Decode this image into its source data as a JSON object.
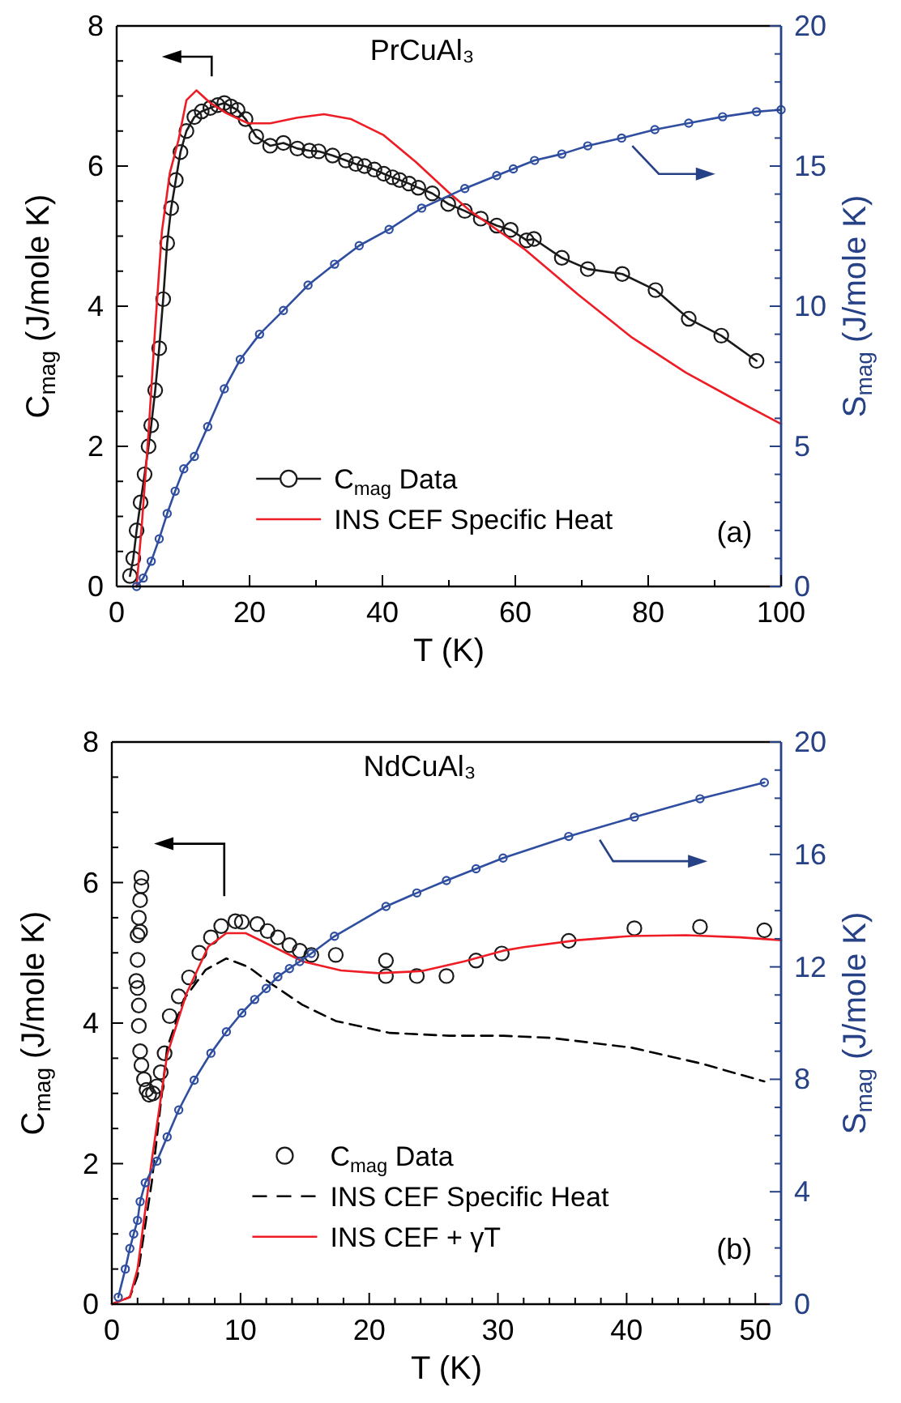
{
  "chart_data": [
    {
      "type": "line",
      "xlabel": "T (K)",
      "ylabel": "C$_{mag}$ (J/mole K)",
      "y2label": "S$_{mag}$ (J/mole K)",
      "annotations": [
        "PrCuAl₃",
        "(a)"
      ],
      "xlim": [
        0,
        100
      ],
      "xticks": [
        0,
        {
          "value": 10,
          "label": null
        },
        20,
        {
          "value": 30,
          "label": null
        },
        40,
        {
          "value": 50,
          "label": null
        },
        60,
        {
          "value": 70,
          "label": null
        },
        80,
        {
          "value": 90,
          "label": null
        },
        100
      ],
      "ylim": [
        0,
        8
      ],
      "yticks": [
        0,
        {
          "value": 0.5,
          "label": null
        },
        {
          "value": 1,
          "label": null
        },
        {
          "value": 1.5,
          "label": null
        },
        2,
        {
          "value": 2.5,
          "label": null
        },
        {
          "value": 3,
          "label": null
        },
        {
          "value": 3.5,
          "label": null
        },
        4,
        {
          "value": 4.5,
          "label": null
        },
        {
          "value": 5,
          "label": null
        },
        {
          "value": 5.5,
          "label": null
        },
        6,
        {
          "value": 6.5,
          "label": null
        },
        {
          "value": 7,
          "label": null
        },
        {
          "value": 7.5,
          "label": null
        },
        8
      ],
      "y2lim": [
        0,
        20
      ],
      "y2ticks": [
        0,
        {
          "value": 1,
          "label": null
        },
        {
          "value": 2,
          "label": null
        },
        {
          "value": 3,
          "label": null
        },
        {
          "value": 4,
          "label": null
        },
        5,
        {
          "value": 6,
          "label": null
        },
        {
          "value": 7,
          "label": null
        },
        {
          "value": 8,
          "label": null
        },
        {
          "value": 9,
          "label": null
        },
        10,
        {
          "value": 11,
          "label": null
        },
        {
          "value": 12,
          "label": null
        },
        {
          "value": 13,
          "label": null
        },
        {
          "value": 14,
          "label": null
        },
        15,
        {
          "value": 16,
          "label": null
        },
        {
          "value": 17,
          "label": null
        },
        {
          "value": 18,
          "label": null
        },
        {
          "value": 19,
          "label": null
        },
        20
      ],
      "legend": "bottom",
      "series": [
        {
          "name": "C$_{mag}$ Data",
          "type": "line",
          "marker": "circle",
          "line_style": "solid",
          "color": "#1a1a1a",
          "x": [
            2,
            2.5,
            3,
            3.6,
            4.2,
            4.8,
            5.2,
            5.8,
            6.4,
            7,
            7.6,
            8.2,
            8.9,
            9.6,
            10.5,
            11.7,
            12.8,
            14.1,
            15.2,
            16.2,
            17.2,
            18.2,
            19.4,
            21,
            23.1,
            25.1,
            27.2,
            29,
            30.4,
            32.5,
            34.5,
            36,
            37.3,
            38.8,
            40.2,
            41.5,
            42.6,
            44,
            45.4,
            47.5,
            49.9,
            52.4,
            54.8,
            57.2,
            59.3,
            61.7,
            62.8,
            67,
            70.9,
            76.1,
            81.1,
            86.1,
            91,
            96.3
          ],
          "values": [
            0.15,
            0.4,
            0.8,
            1.2,
            1.6,
            2.0,
            2.3,
            2.8,
            3.4,
            4.1,
            4.9,
            5.4,
            5.8,
            6.2,
            6.5,
            6.7,
            6.78,
            6.83,
            6.87,
            6.9,
            6.85,
            6.8,
            6.67,
            6.42,
            6.29,
            6.33,
            6.25,
            6.22,
            6.21,
            6.15,
            6.08,
            6.03,
            6.0,
            5.95,
            5.89,
            5.84,
            5.8,
            5.75,
            5.69,
            5.61,
            5.46,
            5.36,
            5.25,
            5.15,
            5.09,
            4.94,
            4.96,
            4.69,
            4.53,
            4.46,
            4.23,
            3.82,
            3.58,
            3.22
          ]
        },
        {
          "name": "INS CEF Specific Heat",
          "type": "line",
          "marker": "none",
          "line_style": "solid",
          "color": "#ee1c25",
          "x": [
            3,
            3.8,
            4.8,
            5.8,
            6.8,
            8,
            9.3,
            10.5,
            12,
            14.1,
            16.6,
            19.8,
            23.1,
            27.2,
            31.2,
            35.3,
            40.2,
            45,
            49.9,
            53.2,
            58,
            61.3,
            69.4,
            77.6,
            85.7,
            93.8,
            100
          ],
          "values": [
            0,
            0.9,
            2.2,
            3.7,
            5.06,
            5.9,
            6.37,
            6.94,
            7.08,
            6.9,
            6.75,
            6.61,
            6.61,
            6.69,
            6.74,
            6.67,
            6.44,
            6.06,
            5.63,
            5.36,
            5.04,
            4.82,
            4.17,
            3.55,
            3.05,
            2.63,
            2.32
          ]
        },
        {
          "type": "line",
          "axis": "y2",
          "marker": "circle",
          "line_style": "solid",
          "color": "#2f4ea0",
          "x": [
            3,
            4,
            5.2,
            6.4,
            7.6,
            8.8,
            10.1,
            11.7,
            13.7,
            16.2,
            18.6,
            21.5,
            25.1,
            28.8,
            32.8,
            36.5,
            41,
            45.9,
            52.4,
            57.2,
            59.7,
            62.9,
            67,
            70.9,
            76,
            81,
            86.1,
            91.2,
            96.3,
            100
          ],
          "values": [
            0,
            0.3,
            0.9,
            1.7,
            2.6,
            3.4,
            4.2,
            4.64,
            5.7,
            7.05,
            8.1,
            9.0,
            9.85,
            10.75,
            11.5,
            12.16,
            12.74,
            13.5,
            14.2,
            14.66,
            14.9,
            15.2,
            15.43,
            15.72,
            16,
            16.3,
            16.53,
            16.76,
            16.94,
            17.01
          ]
        }
      ]
    },
    {
      "type": "line",
      "xlabel": "T (K)",
      "ylabel": "C$_{mag}$ (J/mole K)",
      "y2label": "S$_{mag}$ (J/mole K)",
      "annotations": [
        "NdCuAl₃",
        "(b)"
      ],
      "xlim": [
        0,
        52
      ],
      "xticks": [
        0,
        {
          "value": 2,
          "label": null
        },
        {
          "value": 4,
          "label": null
        },
        {
          "value": 6,
          "label": null
        },
        {
          "value": 8,
          "label": null
        },
        10,
        {
          "value": 12,
          "label": null
        },
        {
          "value": 14,
          "label": null
        },
        {
          "value": 16,
          "label": null
        },
        {
          "value": 18,
          "label": null
        },
        20,
        {
          "value": 22,
          "label": null
        },
        {
          "value": 24,
          "label": null
        },
        {
          "value": 26,
          "label": null
        },
        {
          "value": 28,
          "label": null
        },
        30,
        {
          "value": 32,
          "label": null
        },
        {
          "value": 34,
          "label": null
        },
        {
          "value": 36,
          "label": null
        },
        {
          "value": 38,
          "label": null
        },
        40,
        {
          "value": 42,
          "label": null
        },
        {
          "value": 44,
          "label": null
        },
        {
          "value": 46,
          "label": null
        },
        {
          "value": 48,
          "label": null
        },
        50
      ],
      "ylim": [
        0,
        8
      ],
      "yticks": [
        0,
        {
          "value": 0.5,
          "label": null
        },
        {
          "value": 1,
          "label": null
        },
        {
          "value": 1.5,
          "label": null
        },
        2,
        {
          "value": 2.5,
          "label": null
        },
        {
          "value": 3,
          "label": null
        },
        {
          "value": 3.5,
          "label": null
        },
        4,
        {
          "value": 4.5,
          "label": null
        },
        {
          "value": 5,
          "label": null
        },
        {
          "value": 5.5,
          "label": null
        },
        6,
        {
          "value": 6.5,
          "label": null
        },
        {
          "value": 7,
          "label": null
        },
        {
          "value": 7.5,
          "label": null
        },
        8
      ],
      "y2lim": [
        0,
        20
      ],
      "y2ticks": [
        0,
        {
          "value": 1,
          "label": null
        },
        {
          "value": 2,
          "label": null
        },
        {
          "value": 3,
          "label": null
        },
        4,
        {
          "value": 5,
          "label": null
        },
        {
          "value": 6,
          "label": null
        },
        {
          "value": 7,
          "label": null
        },
        8,
        {
          "value": 9,
          "label": null
        },
        {
          "value": 10,
          "label": null
        },
        {
          "value": 11,
          "label": null
        },
        12,
        {
          "value": 13,
          "label": null
        },
        {
          "value": 14,
          "label": null
        },
        {
          "value": 15,
          "label": null
        },
        16,
        {
          "value": 17,
          "label": null
        },
        {
          "value": 18,
          "label": null
        },
        {
          "value": 19,
          "label": null
        },
        20
      ],
      "legend": "bottom",
      "series": [
        {
          "name": "C$_{mag}$ Data",
          "type": "scatter",
          "marker": "circle",
          "color": "#1a1a1a",
          "x": [
            1.9,
            2.0,
            2.0,
            2.1,
            2.2,
            2.3,
            2.3,
            2.2,
            2.0,
            2.1,
            2.1,
            2.2,
            2.3,
            2.5,
            2.7,
            2.9,
            3.2,
            3.5,
            3.8,
            4.1,
            4.5,
            5.2,
            6,
            6.8,
            7.7,
            8.5,
            9.6,
            10.1,
            11.3,
            12.1,
            12.9,
            13.8,
            14.6,
            15.5,
            17.4,
            21.3,
            21.3,
            23.7,
            26,
            28.3,
            30.3,
            35.5,
            40.6,
            45.7,
            50.7
          ],
          "values": [
            4.6,
            4.9,
            5.25,
            5.5,
            5.75,
            5.95,
            6.07,
            5.3,
            4.5,
            4.25,
            3.96,
            3.6,
            3.4,
            3.2,
            3.05,
            2.98,
            3.0,
            3.1,
            3.3,
            3.57,
            4.1,
            4.38,
            4.65,
            5.0,
            5.22,
            5.38,
            5.45,
            5.44,
            5.41,
            5.31,
            5.22,
            5.11,
            5.03,
            4.97,
            4.97,
            4.89,
            4.67,
            4.67,
            4.67,
            4.89,
            4.99,
            5.17,
            5.35,
            5.37,
            5.32
          ]
        },
        {
          "name": "INS CEF Specific Heat",
          "type": "line",
          "marker": "none",
          "line_style": "dashed",
          "color": "#000000",
          "x": [
            0,
            1.4,
            2,
            3.1,
            4.3,
            5.6,
            7.3,
            8.9,
            10.6,
            12.3,
            14.8,
            17.4,
            21.6,
            26.2,
            30.4,
            34.1,
            40.4,
            45.9,
            50.7
          ],
          "values": [
            0,
            0.1,
            0.4,
            1.73,
            3.65,
            4.34,
            4.76,
            4.92,
            4.8,
            4.57,
            4.26,
            4.03,
            3.86,
            3.82,
            3.82,
            3.79,
            3.65,
            3.42,
            3.17
          ]
        },
        {
          "name": "INS CEF + γT",
          "type": "line",
          "marker": "none",
          "line_style": "solid",
          "color": "#ee1c25",
          "x": [
            0,
            1.4,
            2,
            3.1,
            4.3,
            5.8,
            7.5,
            8.9,
            10.4,
            12.3,
            14.8,
            17.8,
            20.7,
            24.1,
            27.4,
            30.4,
            32,
            36.2,
            40.4,
            44.6,
            48.8,
            52
          ],
          "values": [
            0,
            0.1,
            0.5,
            2.04,
            3.55,
            4.42,
            5.09,
            5.28,
            5.28,
            5.11,
            4.88,
            4.75,
            4.71,
            4.74,
            4.88,
            5.03,
            5.08,
            5.18,
            5.24,
            5.25,
            5.22,
            5.18
          ]
        },
        {
          "type": "line",
          "axis": "y2",
          "marker": "circle",
          "line_style": "solid",
          "color": "#2f4ea0",
          "x": [
            0.5,
            1.05,
            1.4,
            1.7,
            2.0,
            2.2,
            2.6,
            3.5,
            4.3,
            5.2,
            6.4,
            7.7,
            8.9,
            10.1,
            11.1,
            12,
            12.9,
            13.8,
            14.6,
            15.5,
            17.3,
            21.3,
            23.7,
            26,
            28.3,
            30.4,
            35.5,
            40.6,
            45.7,
            50.7
          ],
          "values": [
            0.25,
            1.25,
            1.98,
            2.5,
            2.98,
            3.65,
            4.32,
            5.09,
            5.95,
            6.91,
            7.97,
            8.93,
            9.69,
            10.36,
            10.84,
            11.23,
            11.65,
            11.94,
            12.19,
            12.48,
            13.09,
            14.15,
            14.63,
            15.07,
            15.49,
            15.87,
            16.64,
            17.33,
            17.98,
            18.56
          ]
        }
      ]
    }
  ]
}
